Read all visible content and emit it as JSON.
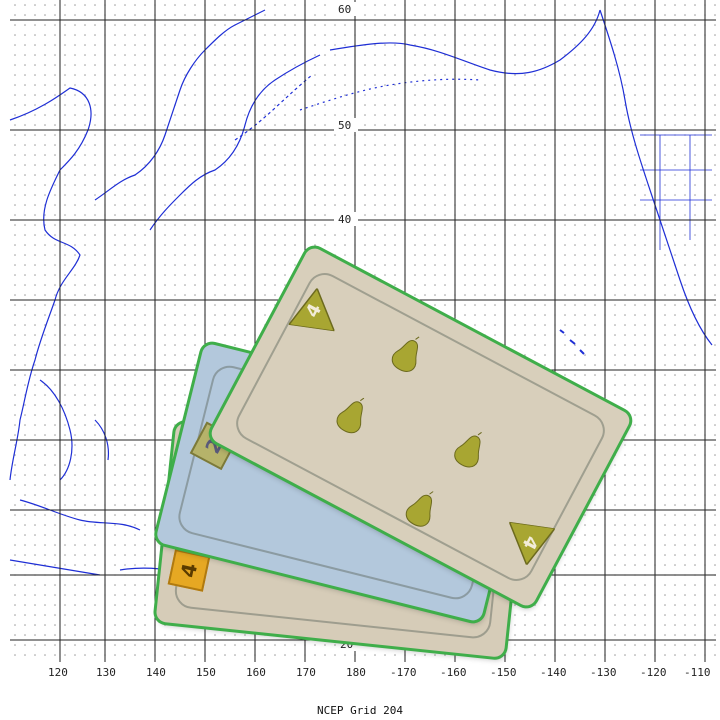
{
  "map": {
    "caption": "NCEP Grid 204",
    "lat_labels": [
      "60",
      "50",
      "40",
      "20"
    ],
    "lon_labels": [
      "120",
      "130",
      "140",
      "150",
      "160",
      "170",
      "180",
      "-170",
      "-160",
      "-150",
      "-140",
      "-130",
      "-120",
      "-110"
    ],
    "colors": {
      "coast": "#1f2fd6",
      "grid": "#222222",
      "dots": "#9a9a9a"
    }
  },
  "cards": {
    "back_value": "4",
    "mid_value": "2",
    "front_value": "4",
    "front_suit_icon": "pear-icon",
    "front_suit_count": 4,
    "colors": {
      "border": "#3fae4a",
      "back": "#d6ccb8",
      "mid": "#b3c8dc",
      "front": "#d8cfbb",
      "pear": "#a8a632"
    }
  }
}
